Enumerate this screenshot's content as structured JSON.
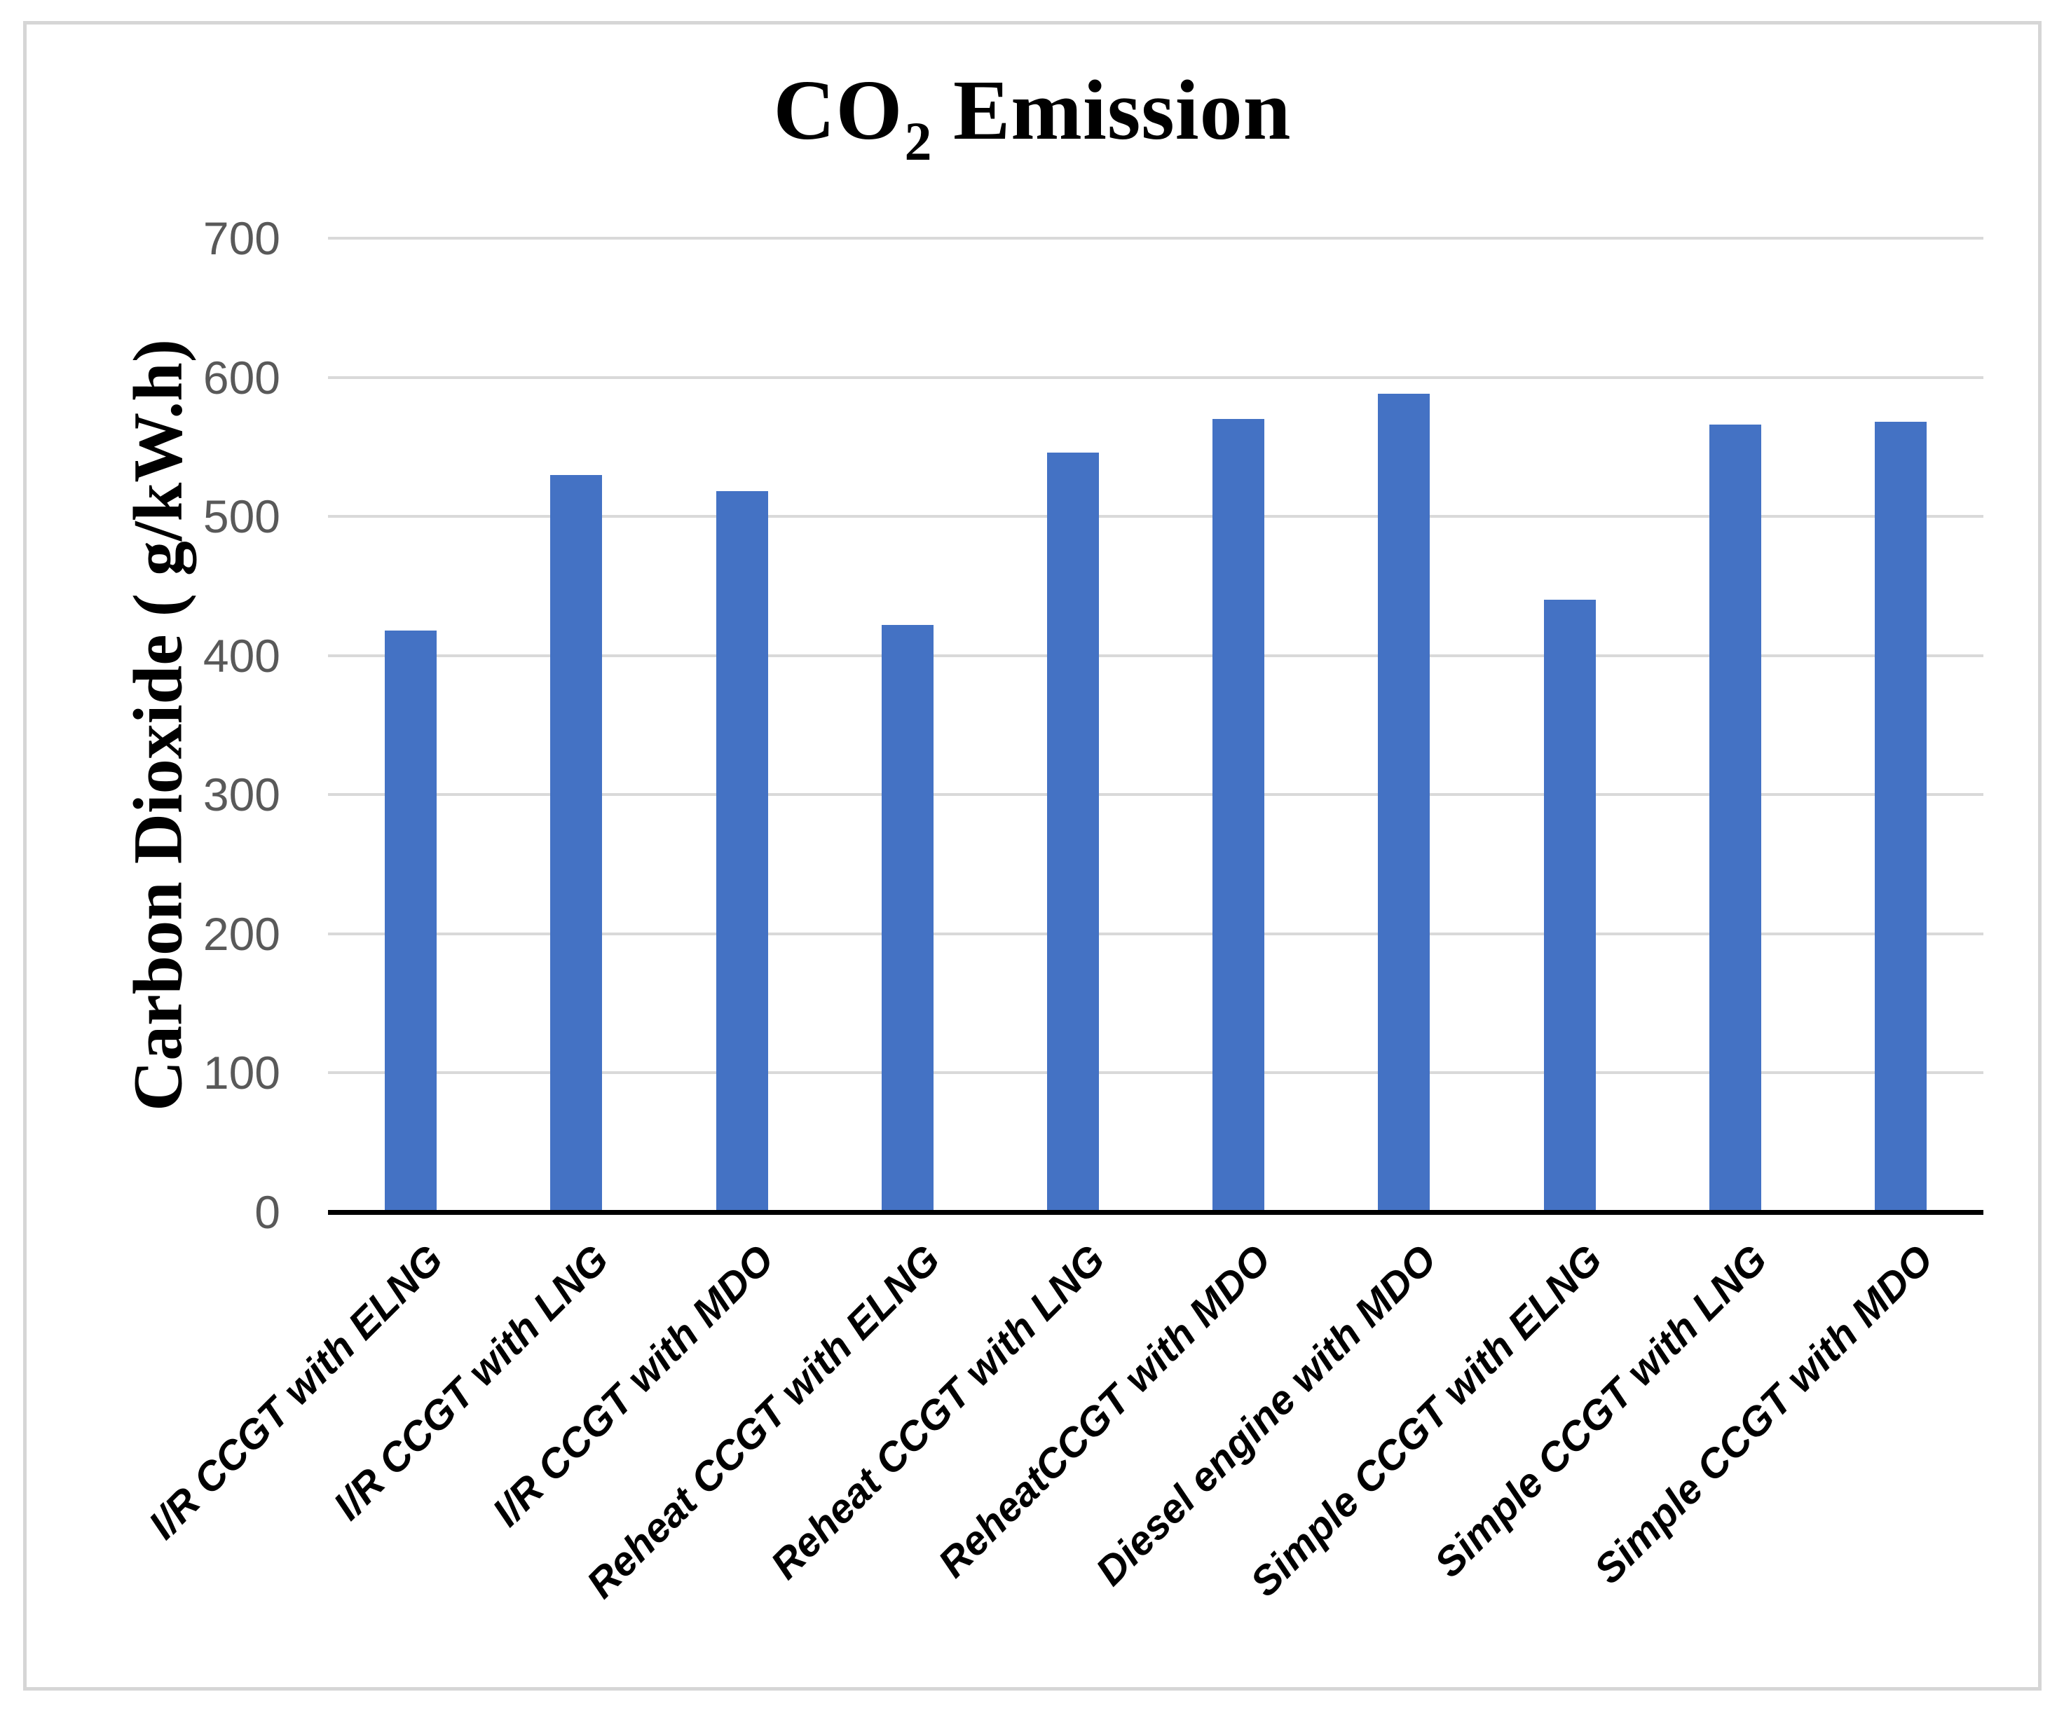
{
  "chart_data": {
    "type": "bar",
    "title": "CO2 Emission",
    "title_parts": {
      "prefix": "CO",
      "subscript": "2",
      "suffix": " Emission"
    },
    "ylabel": "Carbon Dioxide ( g/kW.h)",
    "xlabel": "",
    "categories": [
      "I/R CCGT with ELNG",
      "I/R CCGT with LNG",
      "I/R CCGT with MDO",
      "Reheat CCGT with ELNG",
      "Reheat CCGT with LNG",
      "ReheatCCGT with MDO",
      "Diesel engine with MDO",
      "Simple CCGT with ELNG",
      "Simple CCGT with LNG",
      "Simple CCGT with MDO"
    ],
    "values": [
      418,
      530,
      518,
      422,
      546,
      570,
      588,
      440,
      566,
      568
    ],
    "y_ticks": [
      0,
      100,
      200,
      300,
      400,
      500,
      600,
      700
    ],
    "ylim": [
      0,
      700
    ],
    "grid": true,
    "legend": false,
    "layout_hints": {
      "bar_orientation": "vertical",
      "x_label_rotation_deg": 45
    },
    "colors": {
      "bar": "#4472C4",
      "gridline": "#D9D9D9",
      "axis_line": "#000000",
      "tick_label": "#595959",
      "title_text": "#000000",
      "frame_border": "#D6D6D6"
    }
  }
}
